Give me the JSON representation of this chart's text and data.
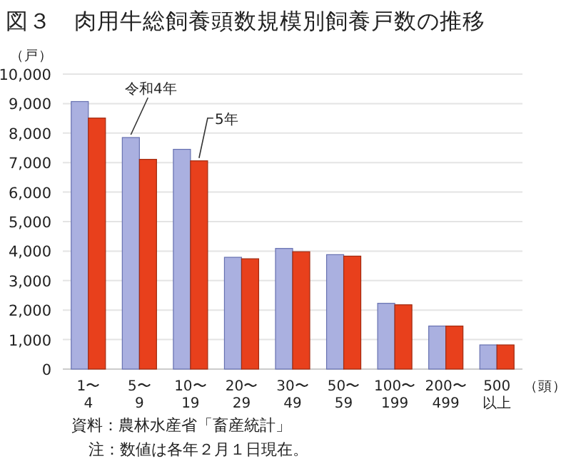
{
  "chart_data": {
    "type": "bar",
    "title": "図３　肉用牛総飼養頭数規模別飼養戸数の推移",
    "ylabel": "（戸）",
    "xlabel": "（頭）",
    "categories": [
      "1〜4",
      "5〜9",
      "10〜19",
      "20〜29",
      "30〜49",
      "50〜59",
      "100〜199",
      "200〜499",
      "500 以上"
    ],
    "series": [
      {
        "name": "令和4年",
        "color": "#aab0e0",
        "values": [
          9070,
          7850,
          7450,
          3790,
          4090,
          3880,
          2230,
          1460,
          820
        ]
      },
      {
        "name": "5年",
        "color": "#e8401c",
        "values": [
          8510,
          7110,
          7060,
          3740,
          3980,
          3830,
          2180,
          1460,
          820
        ]
      }
    ],
    "ylim": [
      0,
      10000
    ],
    "yticks": [
      0,
      {
        "value": 1000,
        "label": "1,000"
      },
      {
        "value": 2000,
        "label": "2,000"
      },
      {
        "value": 3000,
        "label": "3,000"
      },
      {
        "value": 4000,
        "label": "4,000"
      },
      {
        "value": 5000,
        "label": "5,000"
      },
      {
        "value": 6000,
        "label": "6,000"
      },
      {
        "value": 7000,
        "label": "7,000"
      },
      {
        "value": 8000,
        "label": "8,000"
      },
      {
        "value": 9000,
        "label": "9,000"
      },
      {
        "value": 10000,
        "label": "10,000"
      }
    ],
    "grid": "y",
    "annotations": [
      "資料：農林水産省「畜産統計」",
      "注：数値は各年２月１日現在。"
    ]
  }
}
